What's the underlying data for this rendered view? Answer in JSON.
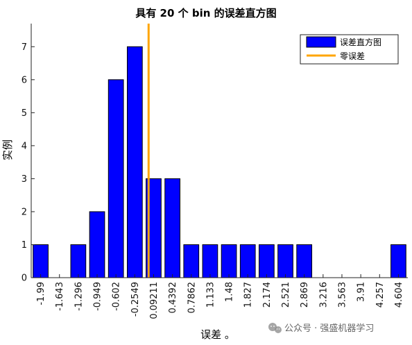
{
  "chart_data": {
    "type": "bar",
    "title": "具有 20 个 bin 的误差直方图",
    "xlabel": "误差 。",
    "ylabel": "实例",
    "ylim": [
      0,
      7.7
    ],
    "yticks": [
      0,
      1,
      2,
      3,
      4,
      5,
      6,
      7
    ],
    "categories": [
      "-1.99",
      "-1.643",
      "-1.296",
      "-0.949",
      "-0.602",
      "-0.2549",
      "0.09211",
      "0.4392",
      "0.7862",
      "1.133",
      "1.48",
      "1.827",
      "2.174",
      "2.521",
      "2.869",
      "3.216",
      "3.563",
      "3.91",
      "4.257",
      "4.604"
    ],
    "series": [
      {
        "name": "误差直方图",
        "values": [
          1,
          0,
          1,
          2,
          6,
          7,
          3,
          3,
          1,
          1,
          1,
          1,
          1,
          1,
          1,
          0,
          0,
          0,
          0,
          1
        ],
        "color": "#0000FF"
      }
    ],
    "zero_line": {
      "name": "零误差",
      "x": 0,
      "color": "#FFA500"
    },
    "legend_placement": "top-right",
    "grid": false
  },
  "watermark": {
    "text": "公众号 · 强盛机器学习",
    "icon": "wechat-icon"
  }
}
